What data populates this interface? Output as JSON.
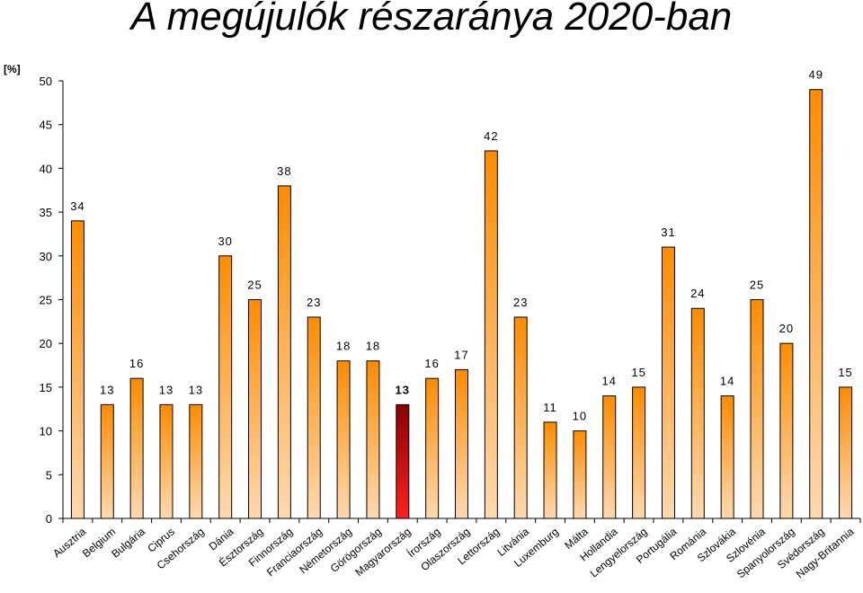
{
  "chart_data": {
    "type": "bar",
    "title": "A megújulók részaránya 2020-ban",
    "ylabel": "[%]",
    "xlabel": "",
    "ylim": [
      0,
      50
    ],
    "yticks": [
      "0",
      "5",
      "10",
      "15",
      "20",
      "25",
      "30",
      "35",
      "40",
      "45",
      "50"
    ],
    "grid": false,
    "categories": [
      "Ausztria",
      "Belgium",
      "Bulgária",
      "Ciprus",
      "Csehország",
      "Dánia",
      "Észtország",
      "Finnország",
      "Franciaország",
      "Németország",
      "Görögország",
      "Magyarország",
      "Írország",
      "Olaszország",
      "Lettország",
      "Litvánia",
      "Luxemburg",
      "Málta",
      "Hollandia",
      "Lengyelország",
      "Portugália",
      "Románia",
      "Szlovákia",
      "Szlovénia",
      "Spanyolország",
      "Svédország",
      "Nagy-Britannia"
    ],
    "values": [
      34,
      13,
      16,
      13,
      13,
      30,
      25,
      38,
      23,
      18,
      18,
      13,
      16,
      17,
      42,
      23,
      11,
      10,
      14,
      15,
      31,
      24,
      14,
      25,
      20,
      49,
      15
    ],
    "data_labels": [
      "34",
      "13",
      "16",
      "13",
      "13",
      "30",
      "25",
      "38",
      "23",
      "18",
      "18",
      "13",
      "16",
      "17",
      "42",
      "23",
      "11",
      "10",
      "14",
      "15",
      "31",
      "24",
      "14",
      "25",
      "20",
      "49",
      "15"
    ],
    "highlight": "Magyarország",
    "colors": {
      "bar_top": "#ff8c00",
      "bar_bottom": "#ffd9b0",
      "highlight_top": "#8b0000",
      "highlight_bottom": "#ff2020",
      "bar_stroke": "#000000"
    }
  }
}
